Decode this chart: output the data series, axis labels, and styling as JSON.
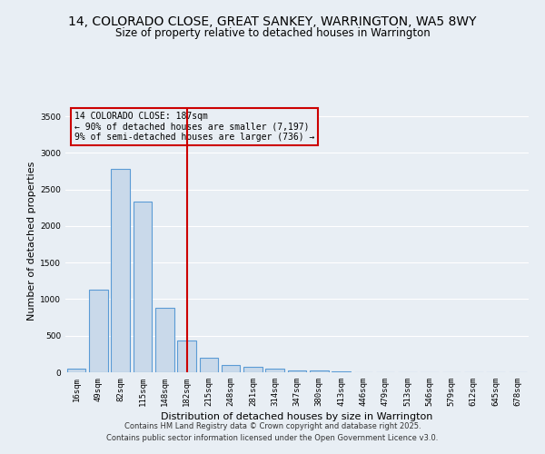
{
  "title": "14, COLORADO CLOSE, GREAT SANKEY, WARRINGTON, WA5 8WY",
  "subtitle": "Size of property relative to detached houses in Warrington",
  "xlabel": "Distribution of detached houses by size in Warrington",
  "ylabel": "Number of detached properties",
  "categories": [
    "16sqm",
    "49sqm",
    "82sqm",
    "115sqm",
    "148sqm",
    "182sqm",
    "215sqm",
    "248sqm",
    "281sqm",
    "314sqm",
    "347sqm",
    "380sqm",
    "413sqm",
    "446sqm",
    "479sqm",
    "513sqm",
    "546sqm",
    "579sqm",
    "612sqm",
    "645sqm",
    "678sqm"
  ],
  "values": [
    50,
    1130,
    2780,
    2340,
    880,
    430,
    200,
    100,
    70,
    50,
    30,
    20,
    10,
    5,
    3,
    2,
    1,
    1,
    0,
    0,
    0
  ],
  "bar_color": "#c9d9ea",
  "bar_edge_color": "#5b9bd5",
  "vline_x": 5.0,
  "vline_color": "#cc0000",
  "annotation_text": "14 COLORADO CLOSE: 187sqm\n← 90% of detached houses are smaller (7,197)\n9% of semi-detached houses are larger (736) →",
  "annotation_box_color": "#cc0000",
  "ylim": [
    0,
    3600
  ],
  "yticks": [
    0,
    500,
    1000,
    1500,
    2000,
    2500,
    3000,
    3500
  ],
  "background_color": "#e8eef4",
  "grid_color": "#ffffff",
  "footer1": "Contains HM Land Registry data © Crown copyright and database right 2025.",
  "footer2": "Contains public sector information licensed under the Open Government Licence v3.0.",
  "title_fontsize": 10,
  "subtitle_fontsize": 8.5,
  "annotation_fontsize": 7,
  "axis_label_fontsize": 8,
  "tick_fontsize": 6.5
}
